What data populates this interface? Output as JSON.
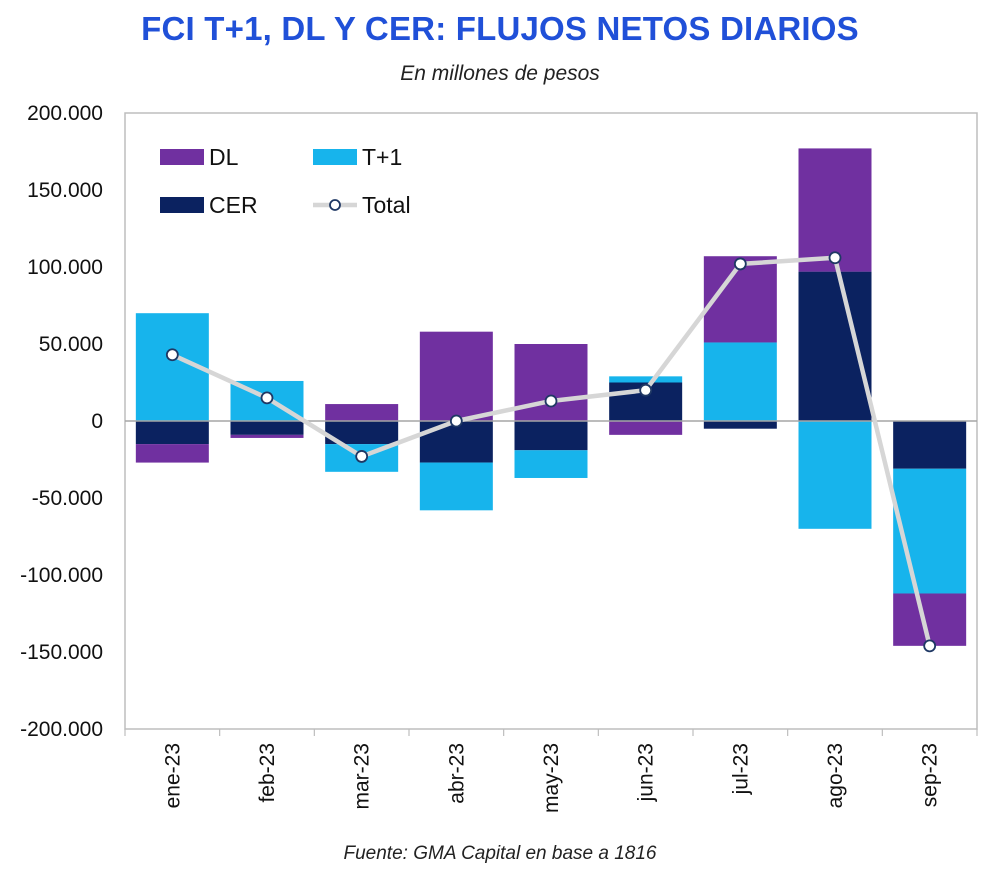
{
  "chart_data": {
    "type": "bar",
    "stacked": true,
    "title": "FCI T+1, DL Y CER: FLUJOS NETOS DIARIOS",
    "subtitle": "En millones de pesos",
    "footer": "Fuente: GMA Capital en base a 1816",
    "categories": [
      "ene-23",
      "feb-23",
      "mar-23",
      "abr-23",
      "may-23",
      "jun-23",
      "jul-23",
      "ago-23",
      "sep-23"
    ],
    "ylim": [
      -200000,
      200000
    ],
    "yticks": [
      200000,
      150000,
      100000,
      50000,
      0,
      -50000,
      -100000,
      -150000,
      -200000
    ],
    "ytick_labels": [
      "200.000",
      "150.000",
      "100.000",
      "50.000",
      "0",
      "-50.000",
      "-100.000",
      "-150.000",
      "-200.000"
    ],
    "series": [
      {
        "name": "CER",
        "color": "#0b2260",
        "values": [
          -15000,
          -9000,
          -15000,
          -27000,
          -19000,
          25000,
          -5000,
          97000,
          -31000
        ]
      },
      {
        "name": "T+1",
        "color": "#17b4ec",
        "values": [
          70000,
          26000,
          -18000,
          -31000,
          -18000,
          4000,
          51000,
          -70000,
          -81000
        ]
      },
      {
        "name": "DL",
        "color": "#7030a0",
        "values": [
          -12000,
          -2000,
          11000,
          58000,
          50000,
          -9000,
          56000,
          80000,
          -34000
        ]
      }
    ],
    "line": {
      "name": "Total",
      "color": "#d6d6d6",
      "marker_edge": "#1f3864",
      "values": [
        43000,
        15000,
        -23000,
        0,
        13000,
        20000,
        102000,
        106000,
        -146000
      ]
    },
    "legend": [
      {
        "name": "DL",
        "kind": "box",
        "color": "#7030a0"
      },
      {
        "name": "T+1",
        "kind": "box",
        "color": "#17b4ec"
      },
      {
        "name": "CER",
        "kind": "box",
        "color": "#0b2260"
      },
      {
        "name": "Total",
        "kind": "line",
        "color": "#d6d6d6"
      }
    ]
  }
}
